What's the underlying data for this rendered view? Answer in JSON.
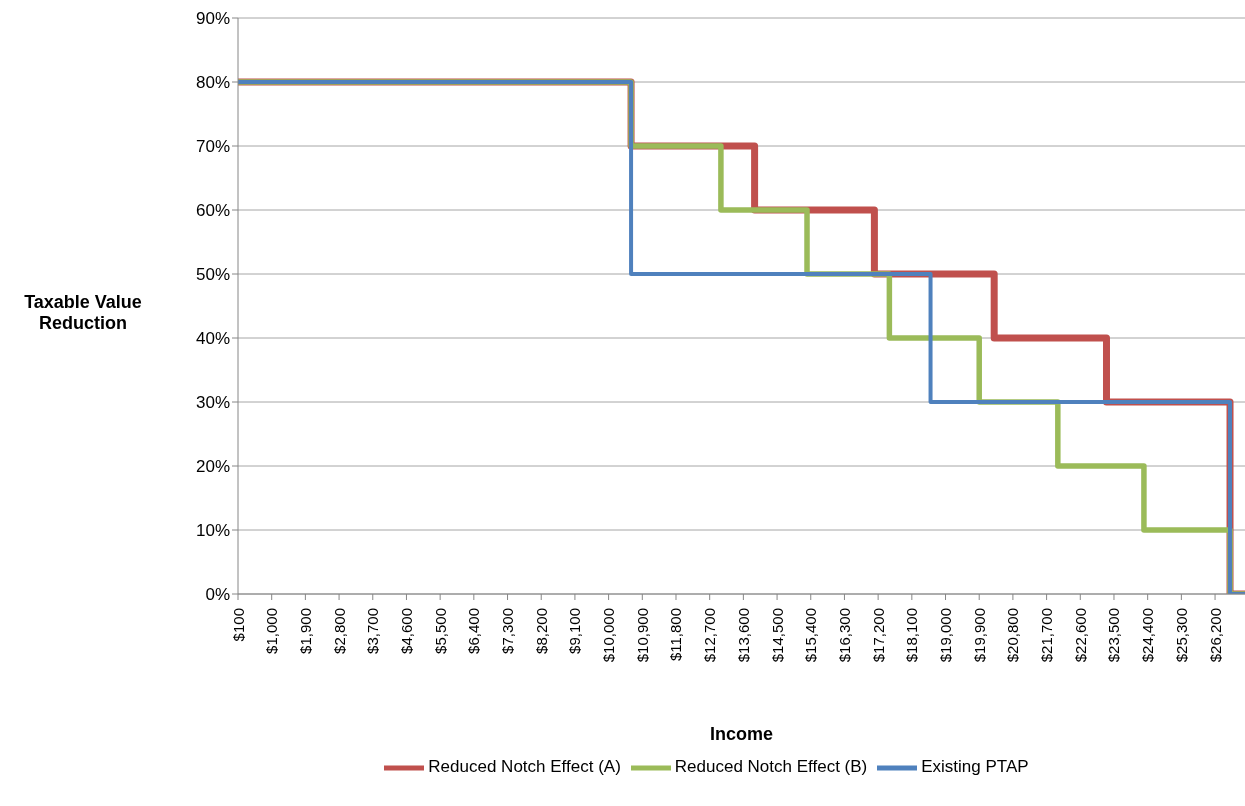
{
  "chart_data": {
    "type": "step",
    "xlabel": "Income",
    "ylabel": "Taxable Value Reduction",
    "xlim": [
      100,
      27000
    ],
    "xticks": [
      {
        "value": 100,
        "label": "$100"
      },
      {
        "value": 1000,
        "label": "$1,000"
      },
      {
        "value": 1900,
        "label": "$1,900"
      },
      {
        "value": 2800,
        "label": "$2,800"
      },
      {
        "value": 3700,
        "label": "$3,700"
      },
      {
        "value": 4600,
        "label": "$4,600"
      },
      {
        "value": 5500,
        "label": "$5,500"
      },
      {
        "value": 6400,
        "label": "$6,400"
      },
      {
        "value": 7300,
        "label": "$7,300"
      },
      {
        "value": 8200,
        "label": "$8,200"
      },
      {
        "value": 9100,
        "label": "$9,100"
      },
      {
        "value": 10000,
        "label": "$10,000"
      },
      {
        "value": 10900,
        "label": "$10,900"
      },
      {
        "value": 11800,
        "label": "$11,800"
      },
      {
        "value": 12700,
        "label": "$12,700"
      },
      {
        "value": 13600,
        "label": "$13,600"
      },
      {
        "value": 14500,
        "label": "$14,500"
      },
      {
        "value": 15400,
        "label": "$15,400"
      },
      {
        "value": 16300,
        "label": "$16,300"
      },
      {
        "value": 17200,
        "label": "$17,200"
      },
      {
        "value": 18100,
        "label": "$18,100"
      },
      {
        "value": 19000,
        "label": "$19,000"
      },
      {
        "value": 19900,
        "label": "$19,900"
      },
      {
        "value": 20800,
        "label": "$20,800"
      },
      {
        "value": 21700,
        "label": "$21,700"
      },
      {
        "value": 22600,
        "label": "$22,600"
      },
      {
        "value": 23500,
        "label": "$23,500"
      },
      {
        "value": 24400,
        "label": "$24,400"
      },
      {
        "value": 25300,
        "label": "$25,300"
      },
      {
        "value": 26200,
        "label": "$26,200"
      }
    ],
    "ylim": [
      0,
      90
    ],
    "yticks": [
      {
        "value": 0,
        "label": "0%"
      },
      {
        "value": 10,
        "label": "10%"
      },
      {
        "value": 20,
        "label": "20%"
      },
      {
        "value": 30,
        "label": "30%"
      },
      {
        "value": 40,
        "label": "40%"
      },
      {
        "value": 50,
        "label": "50%"
      },
      {
        "value": 60,
        "label": "60%"
      },
      {
        "value": 70,
        "label": "70%"
      },
      {
        "value": 80,
        "label": "80%"
      },
      {
        "value": 90,
        "label": "90%"
      }
    ],
    "grid": "y",
    "legend": "bottom",
    "series": [
      {
        "name": "Reduced Notch Effect (A)",
        "color": "#c0504d",
        "x": [
          100,
          10600,
          13900,
          17100,
          20300,
          23300,
          26600,
          27000
        ],
        "values": [
          80,
          70,
          60,
          50,
          40,
          30,
          0,
          0
        ]
      },
      {
        "name": "Reduced Notch Effect (B)",
        "color": "#9bbb59",
        "x": [
          100,
          10600,
          13000,
          15300,
          17500,
          19900,
          22000,
          24300,
          26600,
          27000
        ],
        "values": [
          80,
          70,
          60,
          50,
          40,
          30,
          20,
          10,
          0,
          0
        ]
      },
      {
        "name": "Existing PTAP",
        "color": "#4f81bd",
        "x": [
          100,
          10600,
          18600,
          26600,
          27000
        ],
        "values": [
          80,
          50,
          30,
          0,
          0
        ]
      }
    ]
  }
}
